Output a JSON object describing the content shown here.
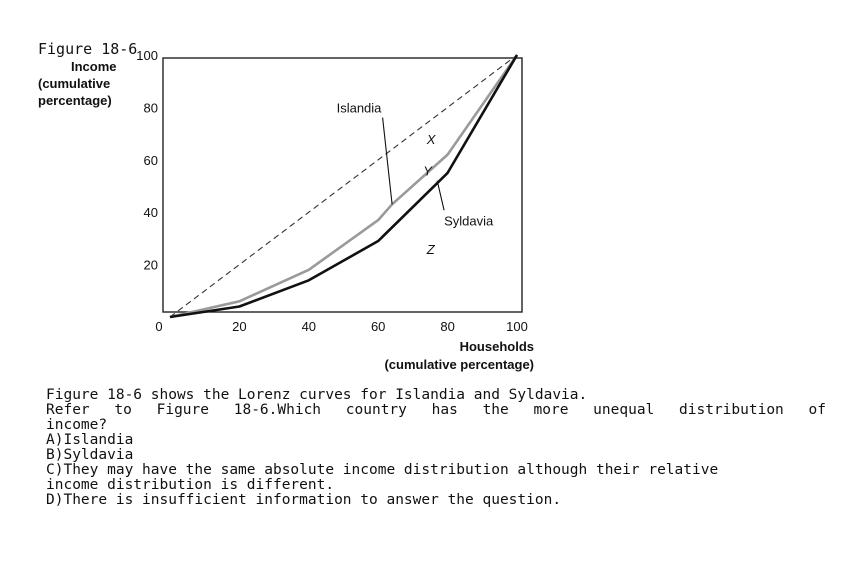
{
  "figure": {
    "label": "Figure 18-6",
    "ylabel_lines": [
      "Income",
      "(cumulative",
      "percentage)"
    ],
    "xlabel_lines": [
      "Households",
      "(cumulative percentage)"
    ]
  },
  "chart_data": {
    "type": "line",
    "xlabel": "Households (cumulative percentage)",
    "ylabel": "Income (cumulative percentage)",
    "xlim": [
      0,
      100
    ],
    "ylim": [
      0,
      100
    ],
    "xticks": [
      "0",
      "20",
      "40",
      "60",
      "80",
      "100"
    ],
    "yticks": [
      "20",
      "40",
      "60",
      "80",
      "100"
    ],
    "grid": false,
    "series": [
      {
        "name": "",
        "style": "dashed",
        "color": "#333333",
        "x": [
          0,
          100
        ],
        "y": [
          0,
          100
        ]
      },
      {
        "name": "Islandia",
        "style": "solid",
        "color": "#9a9a9a",
        "x": [
          0,
          20,
          40,
          60,
          64,
          80,
          100
        ],
        "y": [
          0,
          6,
          18,
          37,
          43,
          62,
          100
        ]
      },
      {
        "name": "Syldavia",
        "style": "solid",
        "color": "#111111",
        "x": [
          0,
          20,
          40,
          60,
          80,
          100
        ],
        "y": [
          0,
          4,
          14,
          29,
          55,
          100
        ]
      }
    ],
    "annotations": [
      {
        "text": "Islandia",
        "x": 48,
        "y": 78,
        "arrow_to": [
          64,
          43
        ]
      },
      {
        "text": "Syldavia",
        "x": 79,
        "y": 35,
        "arrow_to": [
          77,
          52
        ]
      },
      {
        "text": "X",
        "x": 74,
        "y": 66
      },
      {
        "text": "Y",
        "x": 73,
        "y": 54
      },
      {
        "text": "Z",
        "x": 74,
        "y": 24
      }
    ]
  },
  "question": {
    "line1": "Figure 18-6 shows the Lorenz curves for Islandia and Syldavia.",
    "line2": "Refer to Figure 18-6.Which country has the more unequal distribution of",
    "line3": "income?",
    "options": [
      "A)Islandia",
      "B)Syldavia",
      "C)They may have the same absolute income distribution although their relative",
      "income distribution is different.",
      "D)There is insufficient information to answer the question."
    ]
  }
}
